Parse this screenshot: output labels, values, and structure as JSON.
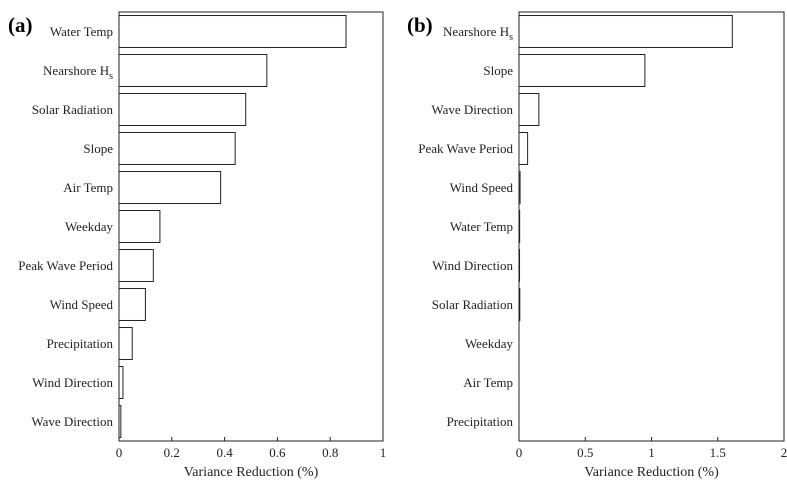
{
  "chart_data": [
    {
      "type": "bar",
      "orientation": "horizontal",
      "panel_label": "(a)",
      "xlabel": "Variance Reduction (%)",
      "xlim": [
        0,
        1
      ],
      "xticks": [
        0,
        0.2,
        0.4,
        0.6,
        0.8,
        1
      ],
      "xtick_labels": [
        "0",
        "0.2",
        "0.4",
        "0.6",
        "0.8",
        "1"
      ],
      "categories": [
        {
          "main": "Water Temp",
          "sub": ""
        },
        {
          "main": "Nearshore H",
          "sub": "s"
        },
        {
          "main": "Solar Radiation",
          "sub": ""
        },
        {
          "main": "Slope",
          "sub": ""
        },
        {
          "main": "Air Temp",
          "sub": ""
        },
        {
          "main": "Weekday",
          "sub": ""
        },
        {
          "main": "Peak Wave Period",
          "sub": ""
        },
        {
          "main": "Wind Speed",
          "sub": ""
        },
        {
          "main": "Precipitation",
          "sub": ""
        },
        {
          "main": "Wind Direction",
          "sub": ""
        },
        {
          "main": "Wave Direction",
          "sub": ""
        }
      ],
      "values": [
        0.86,
        0.56,
        0.48,
        0.44,
        0.385,
        0.155,
        0.13,
        0.1,
        0.05,
        0.015,
        0.007
      ]
    },
    {
      "type": "bar",
      "orientation": "horizontal",
      "panel_label": "(b)",
      "xlabel": "Variance Reduction (%)",
      "xlim": [
        0,
        2
      ],
      "xticks": [
        0,
        0.5,
        1,
        1.5,
        2
      ],
      "xtick_labels": [
        "0",
        "0.5",
        "1",
        "1.5",
        "2"
      ],
      "categories": [
        {
          "main": "Nearshore H",
          "sub": "s"
        },
        {
          "main": "Slope",
          "sub": ""
        },
        {
          "main": "Wave Direction",
          "sub": ""
        },
        {
          "main": "Peak Wave Period",
          "sub": ""
        },
        {
          "main": "Wind Speed",
          "sub": ""
        },
        {
          "main": "Water Temp",
          "sub": ""
        },
        {
          "main": "Wind Direction",
          "sub": ""
        },
        {
          "main": "Solar Radiation",
          "sub": ""
        },
        {
          "main": "Weekday",
          "sub": ""
        },
        {
          "main": "Air Temp",
          "sub": ""
        },
        {
          "main": "Precipitation",
          "sub": ""
        }
      ],
      "values": [
        1.61,
        0.95,
        0.15,
        0.065,
        0.008,
        0.005,
        0.004,
        0.006,
        0.0,
        0.0,
        0.0
      ]
    }
  ]
}
